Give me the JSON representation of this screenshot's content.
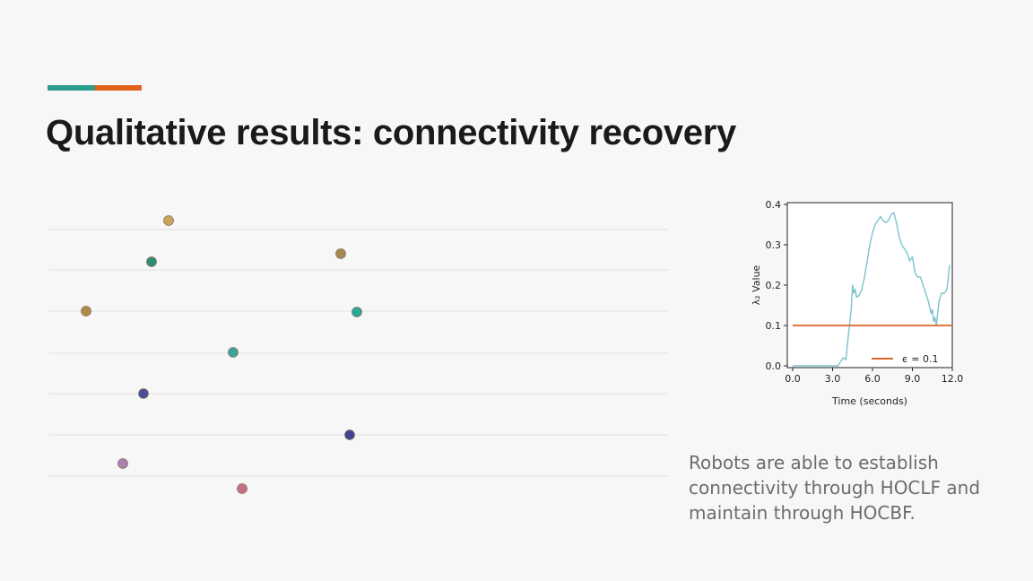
{
  "slide": {
    "title": "Qualitative results: connectivity recovery",
    "accent_colors": [
      "#2a9d8f",
      "#e0621a"
    ],
    "caption_lines": [
      "Robots are able to establish",
      "connectivity through HOCLF and",
      "maintain through HOCBF."
    ]
  },
  "robots": [
    {
      "color": "#c9a45a"
    },
    {
      "color": "#2a8f74"
    },
    {
      "color": "#a38a55"
    },
    {
      "color": "#b08a4a"
    },
    {
      "color": "#2aa69a"
    },
    {
      "color": "#3aa59a"
    },
    {
      "color": "#4a4f9a"
    },
    {
      "color": "#3f468f"
    },
    {
      "color": "#a77fb0"
    },
    {
      "color": "#c47088"
    }
  ],
  "chart_data": {
    "type": "line",
    "xlabel": "Time (seconds)",
    "ylabel": "λ₂ Value",
    "xlim": [
      0,
      12
    ],
    "ylim": [
      0,
      0.4
    ],
    "xticks": [
      "0.0",
      "3.0",
      "6.0",
      "9.0",
      "12.0"
    ],
    "yticks": [
      "0.0",
      "0.1",
      "0.2",
      "0.3",
      "0.4"
    ],
    "grid": false,
    "legend": {
      "position": "bottom-right",
      "label": "ϵ = 0.1"
    },
    "series": [
      {
        "color": "#7cc3cc",
        "x": [
          0,
          3.4,
          3.6,
          3.8,
          4.0,
          4.2,
          4.4,
          4.5,
          4.6,
          4.7,
          4.8,
          5.0,
          5.2,
          5.4,
          5.6,
          5.8,
          6.0,
          6.2,
          6.4,
          6.6,
          6.8,
          7.0,
          7.2,
          7.4,
          7.6,
          7.8,
          8.0,
          8.2,
          8.4,
          8.6,
          8.8,
          9.0,
          9.2,
          9.4,
          9.6,
          9.8,
          10.0,
          10.2,
          10.4,
          10.5,
          10.6,
          10.7,
          10.8,
          11.0,
          11.2,
          11.4,
          11.6,
          11.8
        ],
        "values": [
          0.0,
          0.0,
          0.01,
          0.02,
          0.015,
          0.08,
          0.14,
          0.2,
          0.18,
          0.19,
          0.17,
          0.175,
          0.19,
          0.22,
          0.26,
          0.3,
          0.33,
          0.35,
          0.36,
          0.37,
          0.36,
          0.355,
          0.36,
          0.375,
          0.38,
          0.355,
          0.32,
          0.3,
          0.29,
          0.28,
          0.26,
          0.27,
          0.23,
          0.22,
          0.22,
          0.2,
          0.18,
          0.16,
          0.13,
          0.14,
          0.11,
          0.12,
          0.1,
          0.16,
          0.18,
          0.18,
          0.19,
          0.25
        ]
      },
      {
        "name": "ϵ = 0.1",
        "color": "#d9652a",
        "x": [
          0,
          12
        ],
        "values": [
          0.1,
          0.1
        ]
      }
    ]
  }
}
